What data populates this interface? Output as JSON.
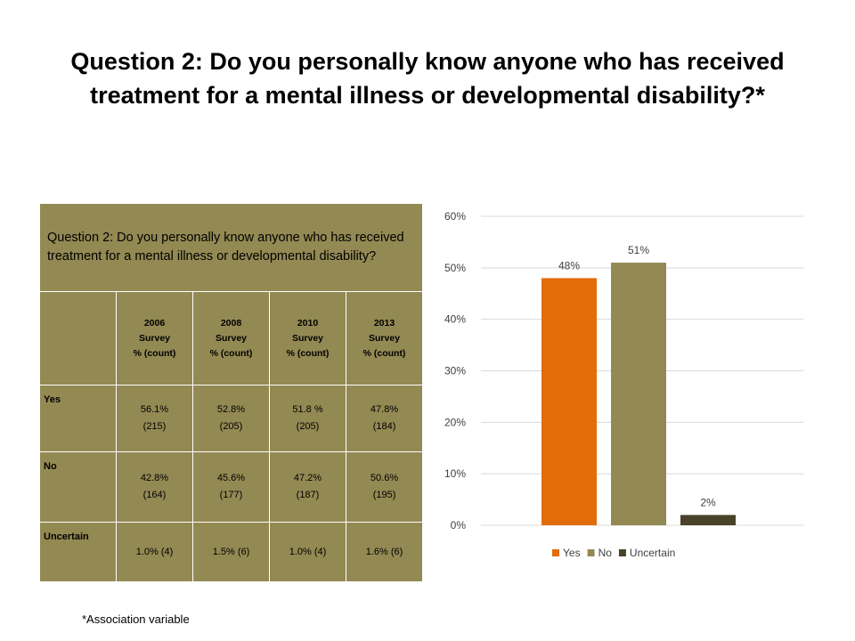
{
  "title": {
    "line1": "Question 2:  Do you personally know anyone who has received",
    "line2": "treatment for a mental illness or developmental disability?*"
  },
  "table": {
    "question": "Question 2:  Do you personally know anyone who has received treatment for a mental illness or developmental disability?",
    "columns": [
      {
        "line1": "2006",
        "line2": "Survey",
        "line3": "% (count)"
      },
      {
        "line1": "2008",
        "line2": "Survey",
        "line3": "% (count)"
      },
      {
        "line1": "2010",
        "line2": "Survey",
        "line3": "% (count)"
      },
      {
        "line1": "2013",
        "line2": "Survey",
        "line3": "% (count)"
      }
    ],
    "rows": [
      {
        "label": "Yes",
        "cells": [
          [
            "56.1%",
            "(215)"
          ],
          [
            "52.8%",
            "(205)"
          ],
          [
            "51.8 %",
            "(205)"
          ],
          [
            "47.8%",
            "(184)"
          ]
        ]
      },
      {
        "label": "No",
        "cells": [
          [
            "42.8%",
            "(164)"
          ],
          [
            "45.6%",
            "(177)"
          ],
          [
            "47.2%",
            "(187)"
          ],
          [
            "50.6%",
            "(195)"
          ]
        ]
      },
      {
        "label": "Uncertain",
        "cells": [
          [
            "1.0% (4)"
          ],
          [
            "1.5% (6)"
          ],
          [
            "1.0% (4)"
          ],
          [
            "1.6% (6)"
          ]
        ]
      }
    ]
  },
  "footnote": "*Association variable",
  "chart_data": {
    "type": "bar",
    "categories": [
      "Yes",
      "No",
      "Uncertain"
    ],
    "values": [
      0.48,
      0.51,
      0.02
    ],
    "data_labels": [
      "48%",
      "51%",
      "2%"
    ],
    "colors": [
      "#e36c09",
      "#938953",
      "#4a4228"
    ],
    "ylim": [
      0,
      0.6
    ],
    "yticks": [
      0,
      0.1,
      0.2,
      0.3,
      0.4,
      0.5,
      0.6
    ],
    "ytick_labels": [
      "0%",
      "10%",
      "20%",
      "30%",
      "40%",
      "50%",
      "60%"
    ],
    "grid": true,
    "legend": {
      "position": "bottom",
      "entries": [
        "Yes",
        "No",
        "Uncertain"
      ]
    },
    "label_color": "#404040",
    "grid_color": "#d9d9d9"
  }
}
